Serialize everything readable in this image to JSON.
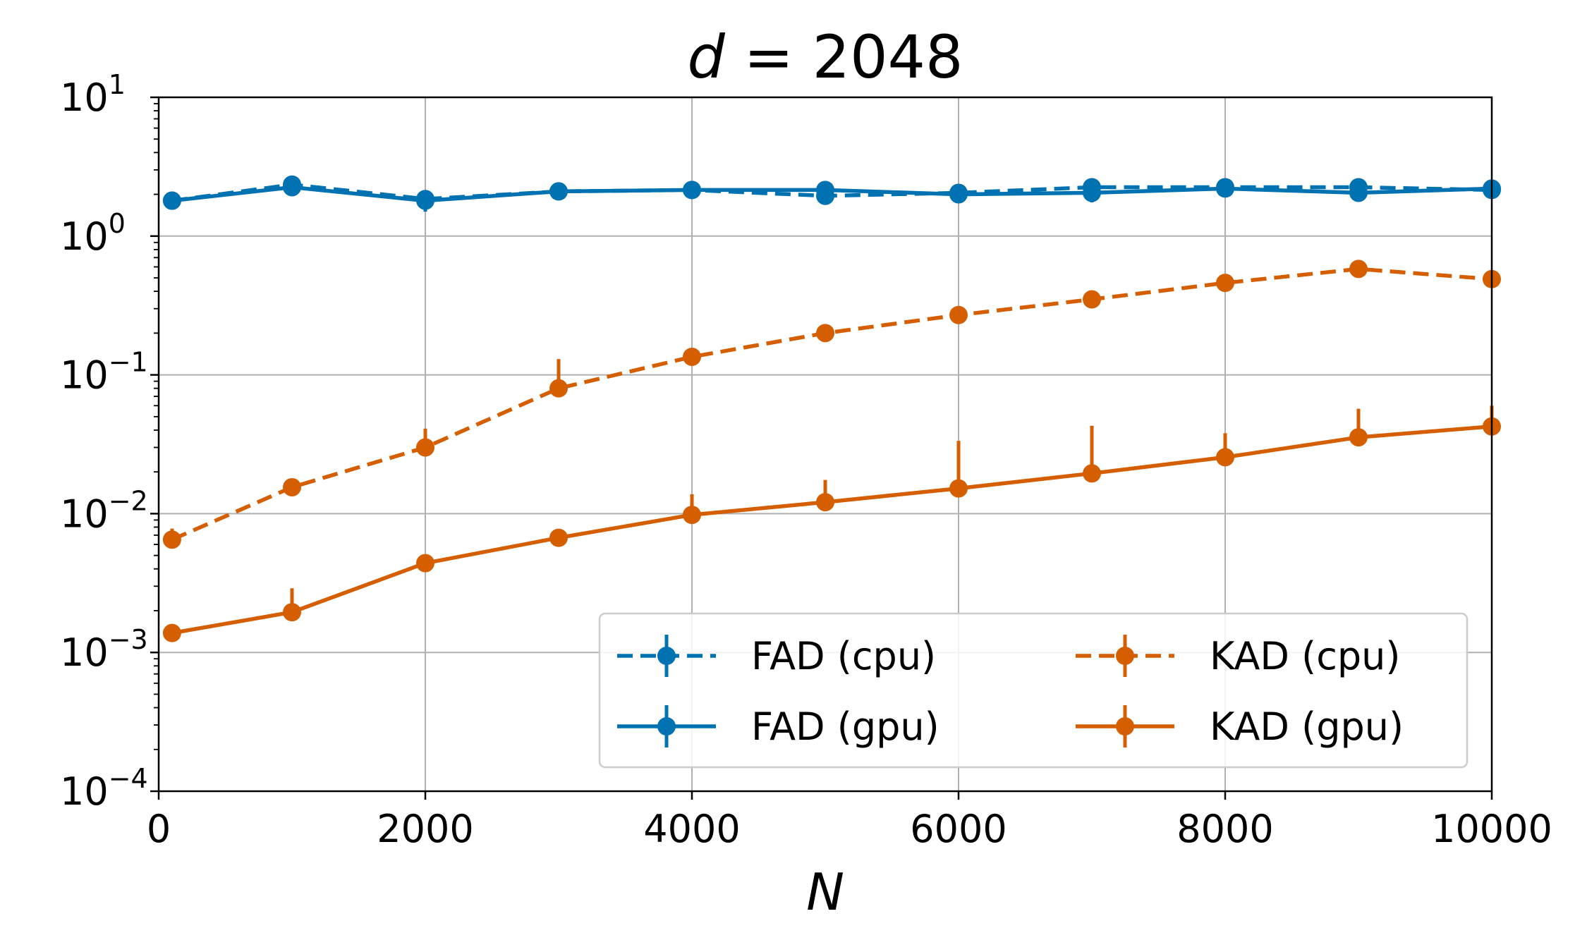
{
  "chart_data": {
    "type": "line",
    "title": "d = 2048",
    "title_variable": "d",
    "title_equals": " = ",
    "title_value": "2048",
    "xlabel": "N",
    "ylabel": "",
    "xlim": [
      0,
      10000
    ],
    "ylim": [
      0.0001,
      10
    ],
    "y_scale": "log",
    "grid": true,
    "legend_position": "lower-right",
    "legend_columns": 2,
    "x": [
      100,
      1000,
      2000,
      3000,
      4000,
      5000,
      6000,
      7000,
      8000,
      9000,
      10000
    ],
    "x_ticks": [
      {
        "value": 0,
        "label": "0"
      },
      {
        "value": 2000,
        "label": "2000"
      },
      {
        "value": 4000,
        "label": "4000"
      },
      {
        "value": 6000,
        "label": "6000"
      },
      {
        "value": 8000,
        "label": "8000"
      },
      {
        "value": 10000,
        "label": "10000"
      }
    ],
    "y_ticks": [
      {
        "value": 10,
        "base": "10",
        "exp": "1"
      },
      {
        "value": 1,
        "base": "10",
        "exp": "0"
      },
      {
        "value": 0.1,
        "base": "10",
        "exp": "−1"
      },
      {
        "value": 0.01,
        "base": "10",
        "exp": "−2"
      },
      {
        "value": 0.001,
        "base": "10",
        "exp": "−3"
      },
      {
        "value": 0.0001,
        "base": "10",
        "exp": "−4"
      }
    ],
    "series": [
      {
        "name": "FAD (cpu)",
        "color": "#0072b2",
        "linestyle": "dashed",
        "values": [
          1.8,
          2.35,
          1.85,
          2.1,
          2.15,
          1.95,
          2.05,
          2.25,
          2.25,
          2.25,
          2.15
        ],
        "err_low": [
          1.65,
          2.2,
          1.5,
          2.0,
          2.05,
          1.85,
          1.95,
          1.75,
          2.15,
          2.15,
          2.05
        ],
        "err_high": [
          1.95,
          2.5,
          2.05,
          2.2,
          2.25,
          2.05,
          2.15,
          2.45,
          2.35,
          2.35,
          2.25
        ]
      },
      {
        "name": "FAD (gpu)",
        "color": "#0072b2",
        "linestyle": "solid",
        "values": [
          1.8,
          2.25,
          1.8,
          2.1,
          2.15,
          2.15,
          2.0,
          2.05,
          2.2,
          2.05,
          2.2
        ],
        "err_low": [
          1.7,
          2.15,
          1.7,
          2.0,
          2.05,
          2.05,
          1.9,
          1.95,
          2.1,
          1.95,
          2.1
        ],
        "err_high": [
          1.9,
          2.35,
          1.9,
          2.2,
          2.25,
          2.25,
          2.1,
          2.15,
          2.3,
          2.15,
          2.3
        ]
      },
      {
        "name": "KAD (cpu)",
        "color": "#d55e00",
        "linestyle": "dashed",
        "values": [
          0.0065,
          0.0155,
          0.03,
          0.08,
          0.135,
          0.2,
          0.27,
          0.35,
          0.46,
          0.58,
          0.49
        ],
        "err_low": [
          0.006,
          0.0145,
          0.028,
          0.07,
          0.13,
          0.195,
          0.26,
          0.34,
          0.45,
          0.56,
          0.47
        ],
        "err_high": [
          0.0078,
          0.017,
          0.041,
          0.13,
          0.145,
          0.21,
          0.28,
          0.36,
          0.47,
          0.6,
          0.51
        ]
      },
      {
        "name": "KAD (gpu)",
        "color": "#d55e00",
        "linestyle": "solid",
        "values": [
          0.00138,
          0.00195,
          0.0044,
          0.0067,
          0.0098,
          0.0121,
          0.0152,
          0.0195,
          0.0255,
          0.0355,
          0.0425
        ],
        "err_low": [
          0.0013,
          0.0018,
          0.0042,
          0.0064,
          0.0094,
          0.0116,
          0.0145,
          0.0185,
          0.0245,
          0.0345,
          0.041
        ],
        "err_high": [
          0.0015,
          0.0029,
          0.0047,
          0.0072,
          0.0138,
          0.0175,
          0.0335,
          0.043,
          0.038,
          0.057,
          0.06
        ]
      }
    ]
  }
}
